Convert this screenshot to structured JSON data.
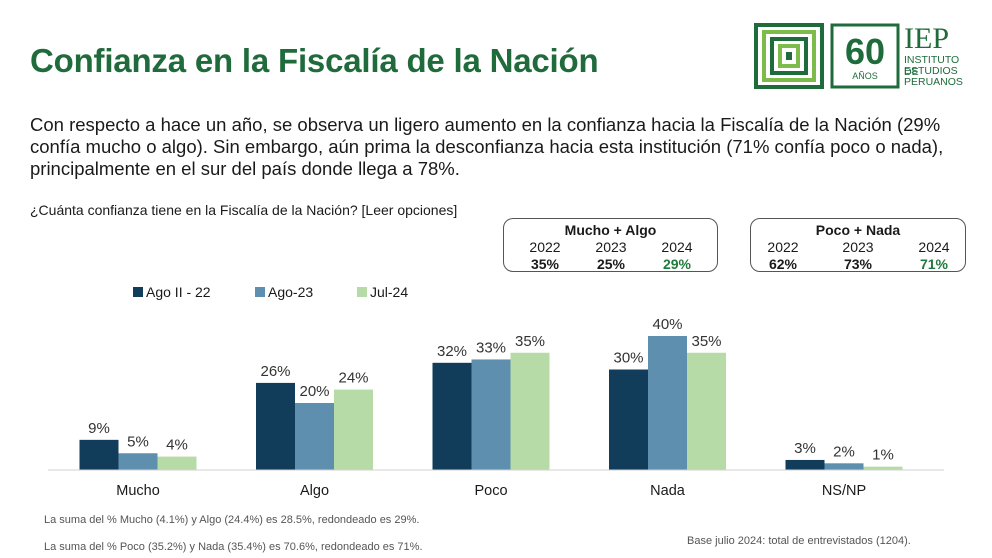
{
  "title": "Confianza en la Fiscalía de la Nación",
  "subtitle": "Con respecto a hace un año, se observa un ligero aumento en la confianza hacia la Fiscalía de la Nación (29% confía mucho o algo). Sin embargo, aún prima la desconfianza hacia esta institución (71% confía poco o nada), principalmente en el sur del país donde llega a 78%.",
  "question": "¿Cuánta confianza tiene en la Fiscalía de la Nación? [Leer opciones]",
  "logo": {
    "number": "60",
    "sub": "AÑOS",
    "brand": "IEP",
    "line1": "INSTITUTO DE",
    "line2": "ESTUDIOS",
    "line3": "PERUANOS"
  },
  "summary": [
    {
      "label": "Mucho + Algo",
      "years": [
        "2022",
        "2023",
        "2024"
      ],
      "values": [
        "35%",
        "25%",
        "29%"
      ]
    },
    {
      "label": "Poco + Nada",
      "years": [
        "2022",
        "2023",
        "2024"
      ],
      "values": [
        "62%",
        "73%",
        "71%"
      ]
    }
  ],
  "chart_data": {
    "type": "bar",
    "categories": [
      "Mucho",
      "Algo",
      "Poco",
      "Nada",
      "NS/NP"
    ],
    "series": [
      {
        "name": "Ago II - 22",
        "color": "#123d5a",
        "values": [
          9,
          26,
          32,
          30,
          3
        ],
        "labels": [
          "9%",
          "26%",
          "32%",
          "30%",
          "3%"
        ]
      },
      {
        "name": "Ago-23",
        "color": "#5f8fae",
        "values": [
          5,
          20,
          33,
          40,
          2
        ],
        "labels": [
          "5%",
          "20%",
          "33%",
          "40%",
          "2%"
        ]
      },
      {
        "name": "Jul-24",
        "color": "#b7dba6",
        "values": [
          4,
          24,
          35,
          35,
          1
        ],
        "labels": [
          "4%",
          "24%",
          "35%",
          "35%",
          "1%"
        ]
      }
    ],
    "legend_position": "top-left",
    "ylim": [
      0,
      40
    ],
    "grid": false
  },
  "footnotes": {
    "note1": "La suma del % Mucho (4.1%) y Algo (24.4%) es 28.5%, redondeado es 29%.",
    "note2": "La suma del % Poco (35.2%) y Nada (35.4%) es 70.6%, redondeado es 71%.",
    "base": "Base julio 2024: total de entrevistados (1204)."
  }
}
